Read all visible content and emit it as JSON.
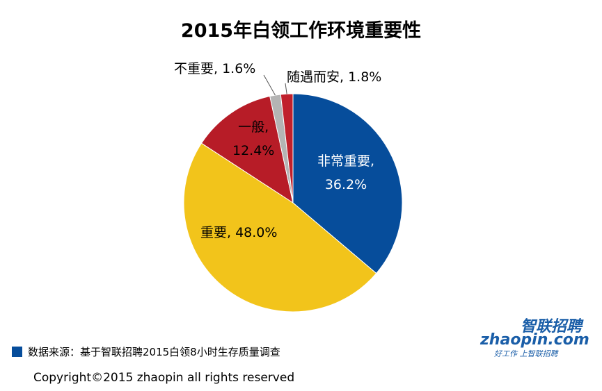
{
  "title": "2015年白领工作环境重要性",
  "chart_data": {
    "type": "pie",
    "title": "2015年白领工作环境重要性",
    "slices": [
      {
        "name": "非常重要",
        "value": 36.2,
        "label_line1": "非常重要,",
        "label_line2": "36.2%",
        "color": "#064d9b"
      },
      {
        "name": "重要",
        "value": 48.0,
        "label_line1": "重要, 48.0%",
        "label_line2": "",
        "color": "#f2c41b"
      },
      {
        "name": "一般",
        "value": 12.4,
        "label_line1": "一般,",
        "label_line2": "12.4%",
        "color": "#b71c27"
      },
      {
        "name": "不重要",
        "value": 1.6,
        "label_line1": "不重要, 1.6%",
        "label_line2": "",
        "color": "#b4b4b4"
      },
      {
        "name": "随遇而安",
        "value": 1.8,
        "label_line1": "随遇而安, 1.8%",
        "label_line2": "",
        "color": "#c0202c"
      }
    ]
  },
  "source": {
    "text": "数据来源：基于智联招聘2015白领8小时生存质量调查",
    "marker_color": "#064d9b"
  },
  "copyright": "Copyright©2015 zhaopin all rights reserved",
  "logo": {
    "cn": "智联招聘",
    "en": "zhaopin.com",
    "slogan": "好工作  上智联招聘"
  }
}
